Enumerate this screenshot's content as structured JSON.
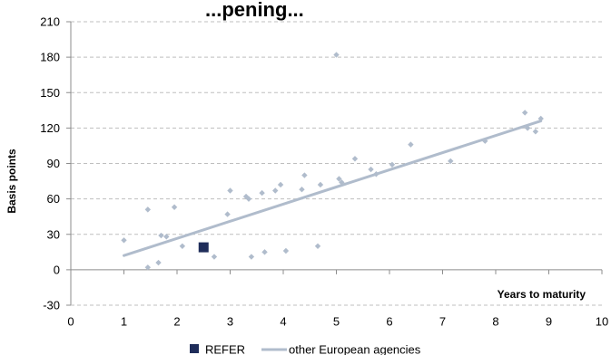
{
  "chart_data": {
    "type": "scatter",
    "title": "...pening...",
    "xlabel": "Years to maturity",
    "ylabel": "Basis points",
    "xlim": [
      0,
      10
    ],
    "ylim": [
      -30,
      210
    ],
    "x_ticks": [
      0,
      1,
      2,
      3,
      4,
      5,
      6,
      7,
      8,
      9,
      10
    ],
    "y_ticks": [
      -30,
      0,
      30,
      60,
      90,
      120,
      150,
      180,
      210
    ],
    "grid": "horizontal-dashed",
    "legend_position": "bottom",
    "series": [
      {
        "name": "REFER",
        "marker": "square",
        "color": "#1f2d5a",
        "points": [
          [
            2.5,
            19
          ]
        ]
      },
      {
        "name": "other European agencies",
        "marker": "diamond",
        "color": "#b0bccc",
        "points": [
          [
            1.0,
            25
          ],
          [
            1.45,
            51
          ],
          [
            1.45,
            2
          ],
          [
            1.65,
            6
          ],
          [
            1.7,
            29
          ],
          [
            1.8,
            28
          ],
          [
            1.95,
            53
          ],
          [
            2.1,
            20
          ],
          [
            2.7,
            11
          ],
          [
            2.95,
            47
          ],
          [
            3.0,
            67
          ],
          [
            3.3,
            62
          ],
          [
            3.35,
            60
          ],
          [
            3.4,
            11
          ],
          [
            3.6,
            65
          ],
          [
            3.65,
            15
          ],
          [
            3.85,
            67
          ],
          [
            3.95,
            72
          ],
          [
            4.05,
            16
          ],
          [
            4.35,
            68
          ],
          [
            4.4,
            80
          ],
          [
            4.65,
            20
          ],
          [
            4.7,
            72
          ],
          [
            5.0,
            182
          ],
          [
            5.05,
            77
          ],
          [
            5.1,
            74
          ],
          [
            5.35,
            94
          ],
          [
            5.65,
            85
          ],
          [
            5.75,
            81
          ],
          [
            6.05,
            89
          ],
          [
            6.4,
            106
          ],
          [
            7.15,
            92
          ],
          [
            7.8,
            109
          ],
          [
            8.55,
            133
          ],
          [
            8.6,
            120
          ],
          [
            8.75,
            117
          ],
          [
            8.85,
            128
          ]
        ]
      }
    ],
    "trendline": {
      "series": "other European agencies",
      "color": "#b0bccc",
      "from": [
        1.0,
        12
      ],
      "to": [
        8.85,
        126
      ]
    }
  }
}
